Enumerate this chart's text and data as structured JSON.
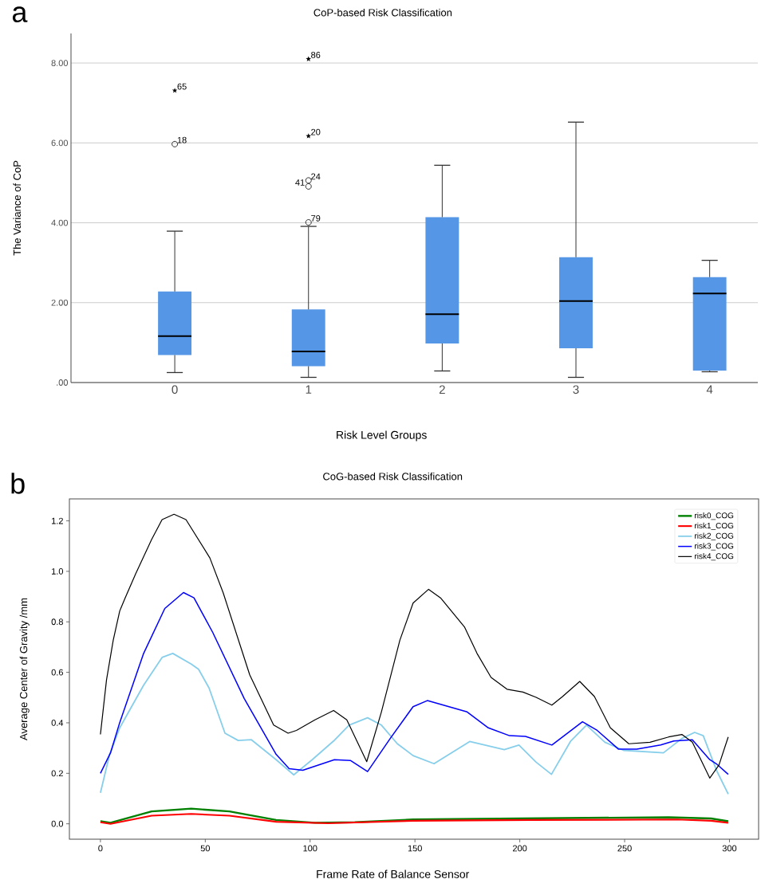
{
  "chart_data": [
    {
      "type": "box",
      "title": "CoP-based Risk Classification",
      "xlabel": "Risk Level Groups",
      "ylabel": "The Variance of CoP",
      "categories": [
        "0",
        "1",
        "2",
        "3",
        "4"
      ],
      "color": "#5596e6",
      "boxes": [
        {
          "low": 0.25,
          "q1": 0.69,
          "median": 1.16,
          "q3": 2.28,
          "high": 3.79
        },
        {
          "low": 0.13,
          "q1": 0.41,
          "median": 0.78,
          "q3": 1.83,
          "high": 3.91
        },
        {
          "low": 0.29,
          "q1": 0.98,
          "median": 1.71,
          "q3": 4.14,
          "high": 5.44
        },
        {
          "low": 0.13,
          "q1": 0.86,
          "median": 2.04,
          "q3": 3.14,
          "high": 6.52
        },
        {
          "low": 0.27,
          "q1": 0.3,
          "median": 2.23,
          "q3": 2.64,
          "high": 3.06
        }
      ],
      "series": [
        {
          "type": "scatter",
          "marker": "circle",
          "color": "#000000",
          "x": [
            "0",
            "1",
            "1",
            "1"
          ],
          "values": [
            5.97,
            4.01,
            4.91,
            5.06
          ]
        },
        {
          "type": "scatter",
          "marker": "star",
          "color": "#000000",
          "x": [
            "0",
            "1",
            "1"
          ],
          "values": [
            7.31,
            6.17,
            8.1
          ]
        }
      ],
      "ylim": [
        0,
        8.74
      ],
      "yticks": [
        {
          "value": 0,
          "label": ".00"
        },
        {
          "value": 2,
          "label": "2.00"
        },
        {
          "value": 4,
          "label": "4.00"
        },
        {
          "value": 6,
          "label": "6.00"
        },
        {
          "value": 8,
          "label": "8.00"
        }
      ],
      "grid": "y",
      "annotations": [
        "a",
        {
          "text": "65",
          "x": "0",
          "y": 7.31
        },
        {
          "text": "18",
          "x": "0",
          "y": 5.97
        },
        {
          "text": "86",
          "x": "1",
          "y": 8.1
        },
        {
          "text": "20",
          "x": "1",
          "y": 6.17
        },
        {
          "text": "24",
          "x": "1",
          "y": 5.06
        },
        {
          "text": "41",
          "x": "1",
          "y": 4.91
        },
        {
          "text": "79",
          "x": "1",
          "y": 4.01
        }
      ]
    },
    {
      "type": "line",
      "title": "CoG-based Risk Classification",
      "xlabel": "Frame Rate of Balance Sensor",
      "ylabel": "Average Center of Gravity  /mm",
      "series": [
        {
          "name": "risk0_COG",
          "color": "#008000",
          "x": [
            0,
            4.8,
            24.4,
            43.3,
            61.5,
            83.8,
            102.3,
            121.3,
            149.1,
            200,
            271,
            291.2,
            299.4
          ],
          "values": [
            0.01,
            0.004,
            0.049,
            0.06,
            0.049,
            0.015,
            0.004,
            0.006,
            0.017,
            0.021,
            0.026,
            0.021,
            0.01
          ]
        },
        {
          "name": "risk1_COG",
          "color": "#ff0000",
          "x": [
            0,
            4.8,
            24.4,
            43.3,
            61.5,
            83.8,
            108.6,
            149.1,
            205.2,
            275.2,
            291.2,
            299.4
          ],
          "values": [
            0.006,
            0.0,
            0.032,
            0.039,
            0.032,
            0.008,
            0.002,
            0.012,
            0.015,
            0.017,
            0.012,
            0.004
          ]
        },
        {
          "name": "risk2_COG",
          "color": "#87ceeb",
          "x": [
            0,
            4.4,
            9.2,
            20.6,
            29.4,
            34.5,
            43.3,
            46.8,
            51.8,
            59.4,
            65.7,
            72.0,
            83.8,
            92.2,
            101.0,
            111.2,
            118.6,
            127.4,
            134.0,
            141.6,
            149.1,
            159.1,
            176.1,
            192.6,
            199.6,
            207.8,
            215.1,
            224.3,
            231.8,
            240.6,
            249.5,
            268.5,
            277.3,
            283.4,
            287.5,
            293.8,
            299.4
          ],
          "values": [
            0.123,
            0.275,
            0.38,
            0.549,
            0.659,
            0.675,
            0.633,
            0.612,
            0.538,
            0.359,
            0.33,
            0.333,
            0.254,
            0.194,
            0.254,
            0.328,
            0.391,
            0.42,
            0.391,
            0.317,
            0.27,
            0.238,
            0.326,
            0.294,
            0.312,
            0.244,
            0.196,
            0.328,
            0.391,
            0.323,
            0.291,
            0.281,
            0.338,
            0.362,
            0.349,
            0.212,
            0.118
          ]
        },
        {
          "name": "risk3_COG",
          "color": "#0000ff",
          "x": [
            0,
            4.8,
            9.2,
            20.6,
            30.7,
            39.6,
            44.6,
            53.5,
            68.6,
            83.8,
            90.0,
            96.5,
            111.6,
            119.2,
            127.4,
            138.2,
            149.1,
            155.9,
            174.9,
            185.0,
            195.1,
            202.7,
            215.3,
            229.9,
            236.9,
            247.0,
            255.8,
            267.2,
            273.5,
            282.3,
            290.6,
            293.7,
            299.4
          ],
          "values": [
            0.2,
            0.281,
            0.401,
            0.675,
            0.853,
            0.916,
            0.895,
            0.759,
            0.496,
            0.275,
            0.218,
            0.212,
            0.254,
            0.251,
            0.207,
            0.338,
            0.464,
            0.488,
            0.443,
            0.38,
            0.349,
            0.346,
            0.312,
            0.404,
            0.37,
            0.296,
            0.296,
            0.312,
            0.328,
            0.333,
            0.254,
            0.238,
            0.196
          ]
        },
        {
          "name": "risk4_COG",
          "color": "#000000",
          "x": [
            0,
            2.9,
            6.1,
            9.2,
            11.8,
            16.8,
            24.4,
            29.4,
            35.1,
            40.8,
            52.2,
            58.5,
            71.2,
            82.6,
            89.5,
            93.5,
            102.3,
            111.2,
            117.5,
            127.0,
            134.0,
            142.8,
            149.1,
            156.5,
            162.2,
            173.6,
            179.6,
            186.3,
            193.9,
            201.5,
            207.8,
            215.3,
            220.4,
            228.6,
            235.6,
            243.2,
            252.0,
            262.1,
            271.0,
            277.3,
            282.3,
            290.6,
            295.0,
            299.4
          ],
          "values": [
            0.354,
            0.57,
            0.727,
            0.843,
            0.895,
            0.99,
            1.126,
            1.205,
            1.226,
            1.205,
            1.053,
            0.916,
            0.59,
            0.391,
            0.359,
            0.37,
            0.412,
            0.449,
            0.412,
            0.246,
            0.443,
            0.727,
            0.874,
            0.929,
            0.895,
            0.78,
            0.675,
            0.58,
            0.533,
            0.522,
            0.501,
            0.47,
            0.504,
            0.564,
            0.504,
            0.38,
            0.317,
            0.323,
            0.344,
            0.354,
            0.323,
            0.181,
            0.233,
            0.344
          ]
        }
      ],
      "xlim": [
        -14.8,
        313.9
      ],
      "xticks": [
        0,
        50,
        100,
        150,
        200,
        250,
        300
      ],
      "ylim": [
        -0.061,
        1.287
      ],
      "yticks": [
        {
          "value": 0,
          "label": "0.0"
        },
        {
          "value": 0.2,
          "label": "0.2"
        },
        {
          "value": 0.4,
          "label": "0.4"
        },
        {
          "value": 0.6,
          "label": "0.6"
        },
        {
          "value": 0.8,
          "label": "0.8"
        },
        {
          "value": 1.0,
          "label": "1.0"
        },
        {
          "value": 1.2,
          "label": "1.2"
        }
      ],
      "legend": "top right",
      "annotations": [
        "b"
      ]
    }
  ]
}
